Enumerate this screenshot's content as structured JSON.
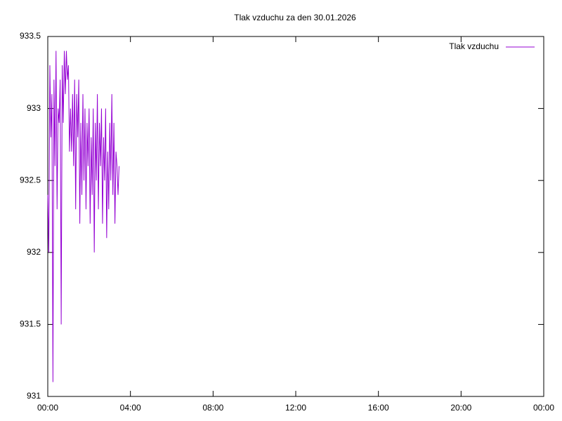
{
  "chart_data": {
    "type": "line",
    "title": "Tlak vzduchu za den 30.01.2026",
    "x": [
      0.0,
      0.05,
      0.1,
      0.15,
      0.2,
      0.25,
      0.3,
      0.35,
      0.4,
      0.45,
      0.5,
      0.55,
      0.6,
      0.65,
      0.7,
      0.75,
      0.8,
      0.85,
      0.9,
      0.95,
      1.0,
      1.05,
      1.1,
      1.15,
      1.2,
      1.25,
      1.3,
      1.35,
      1.4,
      1.45,
      1.5,
      1.55,
      1.6,
      1.65,
      1.7,
      1.75,
      1.8,
      1.85,
      1.9,
      1.95,
      2.0,
      2.05,
      2.1,
      2.15,
      2.2,
      2.25,
      2.3,
      2.35,
      2.4,
      2.45,
      2.5,
      2.55,
      2.6,
      2.65,
      2.7,
      2.75,
      2.8,
      2.85,
      2.9,
      2.95,
      3.0,
      3.05,
      3.1,
      3.15,
      3.2,
      3.25,
      3.3,
      3.35,
      3.4,
      3.45
    ],
    "series": [
      {
        "name": "Tlak vzduchu",
        "color": "#9400d3",
        "values": [
          932.4,
          932.0,
          933.3,
          932.8,
          933.1,
          931.1,
          933.2,
          932.6,
          933.4,
          932.3,
          933.0,
          932.9,
          933.2,
          931.5,
          933.3,
          932.9,
          933.4,
          933.1,
          933.4,
          933.2,
          933.3,
          932.7,
          933.0,
          932.7,
          933.1,
          932.6,
          933.2,
          932.3,
          933.1,
          932.8,
          933.2,
          932.2,
          932.9,
          932.4,
          933.1,
          932.5,
          933.0,
          932.3,
          932.9,
          932.6,
          933.0,
          932.2,
          932.8,
          932.4,
          933.0,
          932.0,
          932.9,
          932.5,
          933.1,
          932.3,
          932.9,
          932.6,
          933.0,
          932.2,
          932.8,
          932.5,
          933.0,
          932.1,
          932.7,
          932.3,
          932.9,
          932.5,
          933.1,
          932.4,
          932.9,
          932.2,
          932.7,
          932.6,
          932.4,
          932.6
        ]
      }
    ],
    "xlim": [
      0,
      24
    ],
    "xticks": [
      {
        "value": 0,
        "label": "00:00"
      },
      {
        "value": 4,
        "label": "04:00"
      },
      {
        "value": 8,
        "label": "08:00"
      },
      {
        "value": 12,
        "label": "12:00"
      },
      {
        "value": 16,
        "label": "16:00"
      },
      {
        "value": 20,
        "label": "20:00"
      },
      {
        "value": 24,
        "label": "00:00"
      }
    ],
    "ylim": [
      931,
      933.5
    ],
    "yticks": [
      931,
      931.5,
      932,
      932.5,
      933,
      933.5
    ],
    "legend": "top-right"
  }
}
